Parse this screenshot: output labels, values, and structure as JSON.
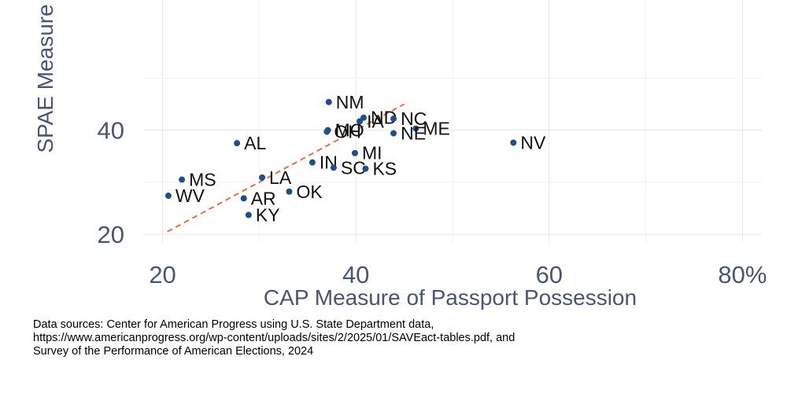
{
  "chart_data": {
    "type": "scatter",
    "title": "",
    "xlabel": "CAP Measure of Passport Possession",
    "ylabel": "SPAE Measure",
    "xlim": [
      18,
      82
    ],
    "ylim": [
      18.5,
      65
    ],
    "x_ticks": [
      {
        "value": 20,
        "label": "20"
      },
      {
        "value": 40,
        "label": "40"
      },
      {
        "value": 60,
        "label": "60"
      },
      {
        "value": 80,
        "label": "80%"
      }
    ],
    "y_ticks": [
      {
        "value": 20,
        "label": "20"
      },
      {
        "value": 40,
        "label": "40"
      }
    ],
    "grid": true,
    "reference_line": {
      "style": "dashed",
      "color": "#e07050",
      "from": [
        20.5,
        20.5
      ],
      "to": [
        45,
        45
      ]
    },
    "point_color": "#1f4e8c",
    "axis_text_color": "#4a5575",
    "points": [
      {
        "label": "NM",
        "x": 37.2,
        "y": 45.4
      },
      {
        "label": "ND",
        "x": 40.8,
        "y": 42.4
      },
      {
        "label": "NC",
        "x": 43.9,
        "y": 42.2
      },
      {
        "label": "IA",
        "x": 40.4,
        "y": 41.7
      },
      {
        "label": "ME",
        "x": 46.2,
        "y": 40.3
      },
      {
        "label": "MO",
        "x": 37.1,
        "y": 40.0
      },
      {
        "label": "OH",
        "x": 37.0,
        "y": 39.7
      },
      {
        "label": "NE",
        "x": 43.9,
        "y": 39.4
      },
      {
        "label": "AL",
        "x": 27.7,
        "y": 37.5
      },
      {
        "label": "NV",
        "x": 56.3,
        "y": 37.6
      },
      {
        "label": "MI",
        "x": 39.9,
        "y": 35.6
      },
      {
        "label": "IN",
        "x": 35.5,
        "y": 33.8
      },
      {
        "label": "SC",
        "x": 37.7,
        "y": 32.8
      },
      {
        "label": "KS",
        "x": 41.0,
        "y": 32.6
      },
      {
        "label": "MS",
        "x": 22.0,
        "y": 30.5
      },
      {
        "label": "LA",
        "x": 30.3,
        "y": 30.9
      },
      {
        "label": "OK",
        "x": 33.1,
        "y": 28.2
      },
      {
        "label": "WV",
        "x": 20.6,
        "y": 27.4
      },
      {
        "label": "AR",
        "x": 28.4,
        "y": 26.9
      },
      {
        "label": "KY",
        "x": 28.9,
        "y": 23.7
      }
    ]
  },
  "footnote": {
    "line1": "Data sources: Center for American Progress using U.S. State Department data,",
    "line2": "https://www.americanprogress.org/wp-content/uploads/sites/2/2025/01/SAVEact-tables.pdf, and",
    "line3": "Survey of the Performance of American Elections, 2024"
  }
}
